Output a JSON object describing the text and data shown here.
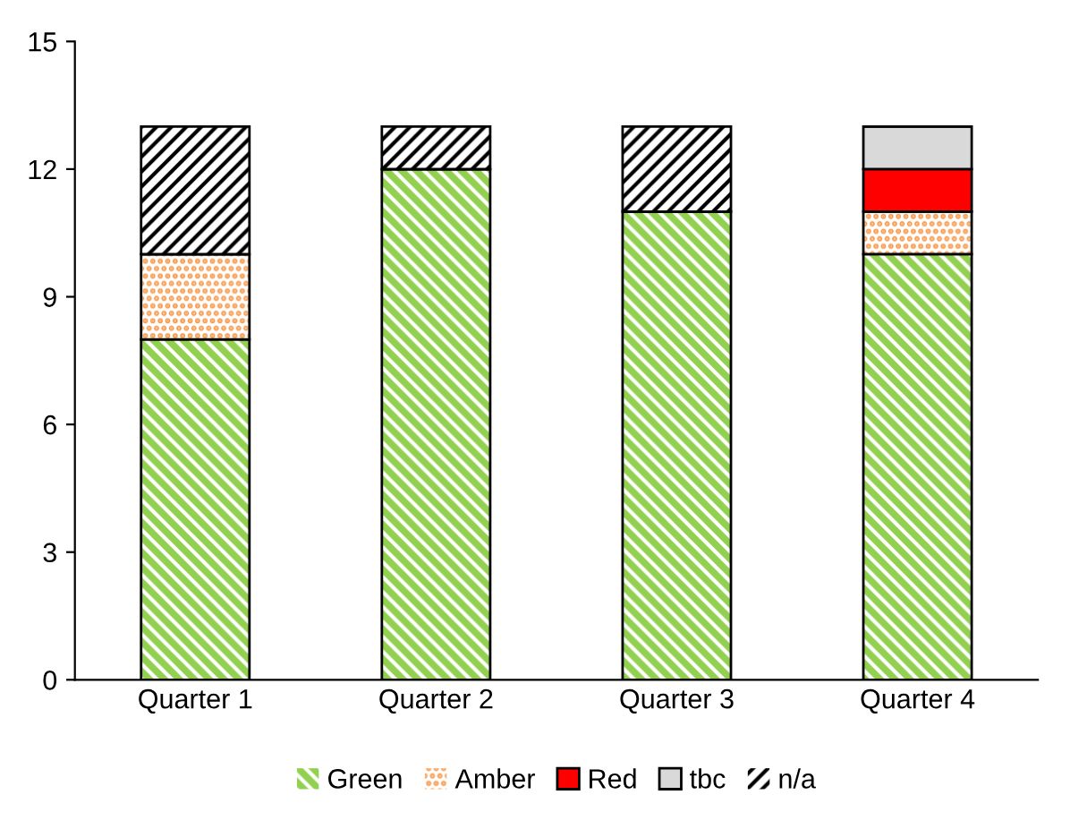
{
  "chart_data": {
    "type": "bar",
    "stacked": true,
    "categories": [
      "Quarter 1",
      "Quarter 2",
      "Quarter 3",
      "Quarter 4"
    ],
    "series": [
      {
        "name": "Green",
        "color": "#92d050",
        "values": [
          8,
          12,
          11,
          10
        ]
      },
      {
        "name": "Amber",
        "color": "#f79646",
        "values": [
          2,
          0,
          0,
          1
        ]
      },
      {
        "name": "Red",
        "color": "#ff0000",
        "values": [
          0,
          0,
          0,
          1
        ]
      },
      {
        "name": "tbc",
        "color": "#d9d9d9",
        "values": [
          0,
          0,
          0,
          1
        ]
      },
      {
        "name": "n/a",
        "color": "#000000",
        "values": [
          3,
          1,
          2,
          0
        ]
      }
    ],
    "ylim": [
      0,
      15
    ],
    "yticks": [
      0,
      3,
      6,
      9,
      12,
      15
    ],
    "grid": false,
    "legend": "bottom"
  }
}
